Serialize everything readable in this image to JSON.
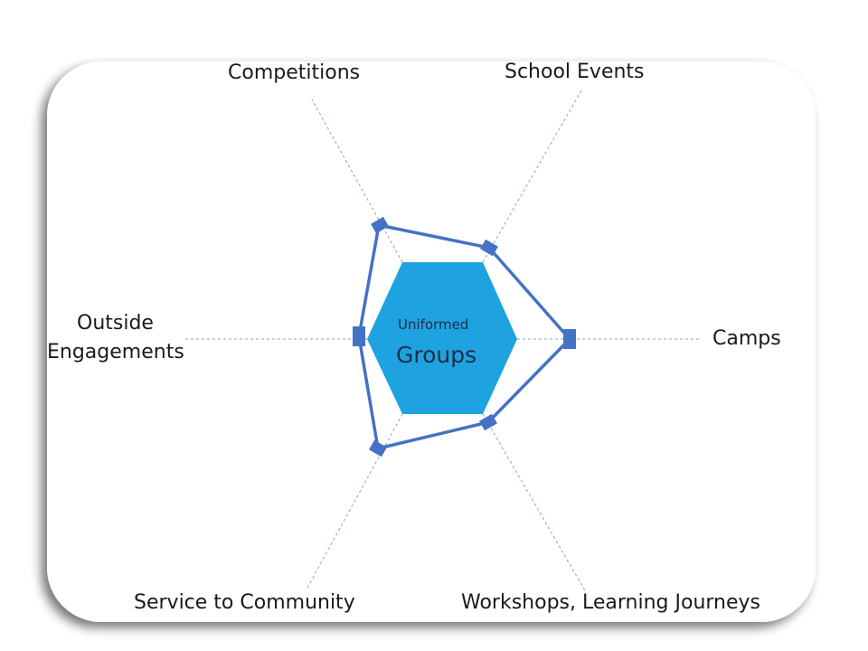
{
  "diagram": {
    "center": {
      "line1": "Uniformed",
      "line2": "Groups",
      "fill": "#1fa3e0"
    },
    "labels": {
      "competitions": "Competitions",
      "school_events": "School Events",
      "outside_line1": "Outside",
      "outside_line2": "Engagements",
      "camps": "Camps",
      "service": "Service to Community",
      "workshops": "Workshops, Learning Journeys"
    },
    "colors": {
      "polygon": "#4472c4",
      "axis": "#8aa0c8",
      "card": "#ffffff"
    }
  }
}
